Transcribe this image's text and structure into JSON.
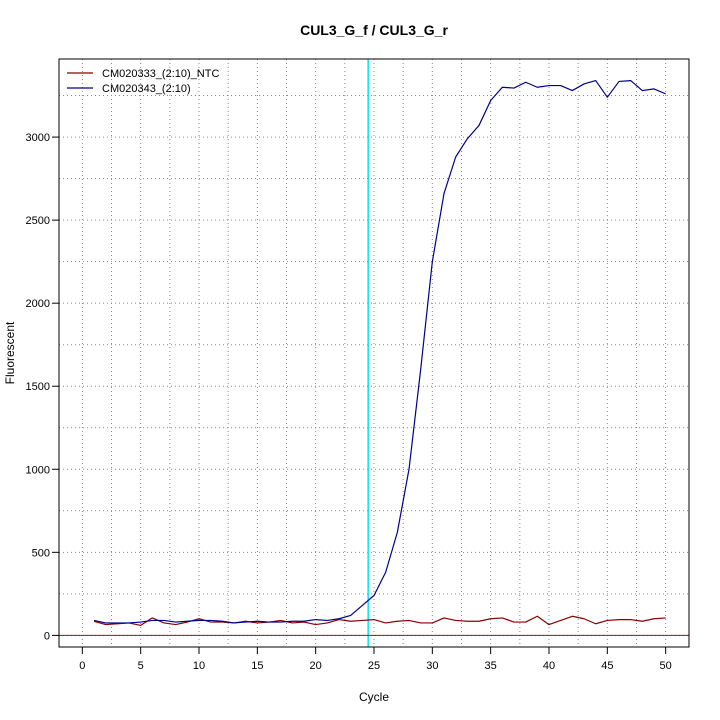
{
  "chart_data": {
    "type": "line",
    "title": "CUL3_G_f / CUL3_G_r",
    "xlabel": "Cycle",
    "ylabel": "Fluorescent",
    "xlim": [
      -2,
      52
    ],
    "ylim": [
      -70,
      3470
    ],
    "x_ticks": [
      0,
      5,
      10,
      15,
      20,
      25,
      30,
      35,
      40,
      45,
      50
    ],
    "y_ticks": [
      0,
      500,
      1000,
      1500,
      2000,
      2500,
      3000
    ],
    "grid": true,
    "legend_position": "top-left",
    "threshold_x": 24.5,
    "threshold_color": "#00e5ee",
    "baseline_y": 0,
    "baseline_color": "#cc0000",
    "x": [
      1,
      2,
      3,
      4,
      5,
      6,
      7,
      8,
      9,
      10,
      11,
      12,
      13,
      14,
      15,
      16,
      17,
      18,
      19,
      20,
      21,
      22,
      23,
      24,
      25,
      26,
      27,
      28,
      29,
      30,
      31,
      32,
      33,
      34,
      35,
      36,
      37,
      38,
      39,
      40,
      41,
      42,
      43,
      44,
      45,
      46,
      47,
      48,
      49,
      50
    ],
    "series": [
      {
        "name": "CM020333_(2:10)_NTC",
        "color": "#8b0000",
        "values": [
          85,
          65,
          70,
          75,
          60,
          105,
          75,
          65,
          80,
          100,
          80,
          80,
          75,
          85,
          75,
          80,
          90,
          75,
          80,
          65,
          75,
          95,
          85,
          90,
          95,
          75,
          85,
          90,
          75,
          75,
          105,
          90,
          85,
          85,
          100,
          105,
          80,
          80,
          115,
          65,
          90,
          115,
          100,
          70,
          90,
          95,
          95,
          85,
          100,
          105
        ]
      },
      {
        "name": "CM020343_(2:10)",
        "color": "#00008b",
        "values": [
          90,
          75,
          75,
          75,
          80,
          90,
          90,
          80,
          85,
          90,
          90,
          85,
          75,
          80,
          85,
          80,
          80,
          85,
          85,
          95,
          90,
          100,
          120,
          180,
          240,
          380,
          620,
          1000,
          1600,
          2250,
          2660,
          2880,
          2990,
          3070,
          3220,
          3300,
          3295,
          3330,
          3300,
          3310,
          3310,
          3280,
          3320,
          3340,
          3240,
          3335,
          3340,
          3280,
          3290,
          3260
        ]
      }
    ]
  }
}
